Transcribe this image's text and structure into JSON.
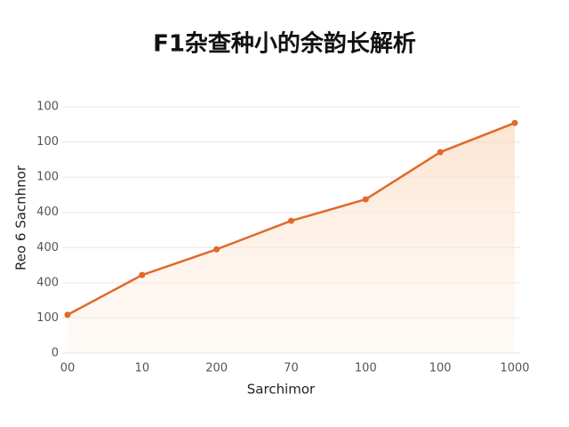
{
  "chart_data": {
    "type": "line",
    "title": "F1杂查种小的余韵长解析",
    "x_label": "Sarchimor",
    "y_label": "Reo 6 Sacnhnor",
    "categories": [
      "00",
      "10",
      "200",
      "70",
      "100",
      "100",
      "1000"
    ],
    "series": [
      {
        "name": "Sarchimor",
        "color": "#e0692a",
        "values": [
          1.09,
          2.22,
          2.95,
          3.76,
          4.37,
          5.71,
          6.54
        ]
      }
    ],
    "ylim": [
      0,
      7
    ],
    "yticks": [
      0,
      {
        "value": 1,
        "label": "100"
      },
      {
        "value": 2,
        "label": "400"
      },
      {
        "value": 3,
        "label": "400"
      },
      {
        "value": 4,
        "label": "400"
      },
      {
        "value": 5,
        "label": "100"
      },
      {
        "value": 6,
        "label": "100"
      },
      {
        "value": 7,
        "label": "100"
      }
    ],
    "grid": true
  }
}
